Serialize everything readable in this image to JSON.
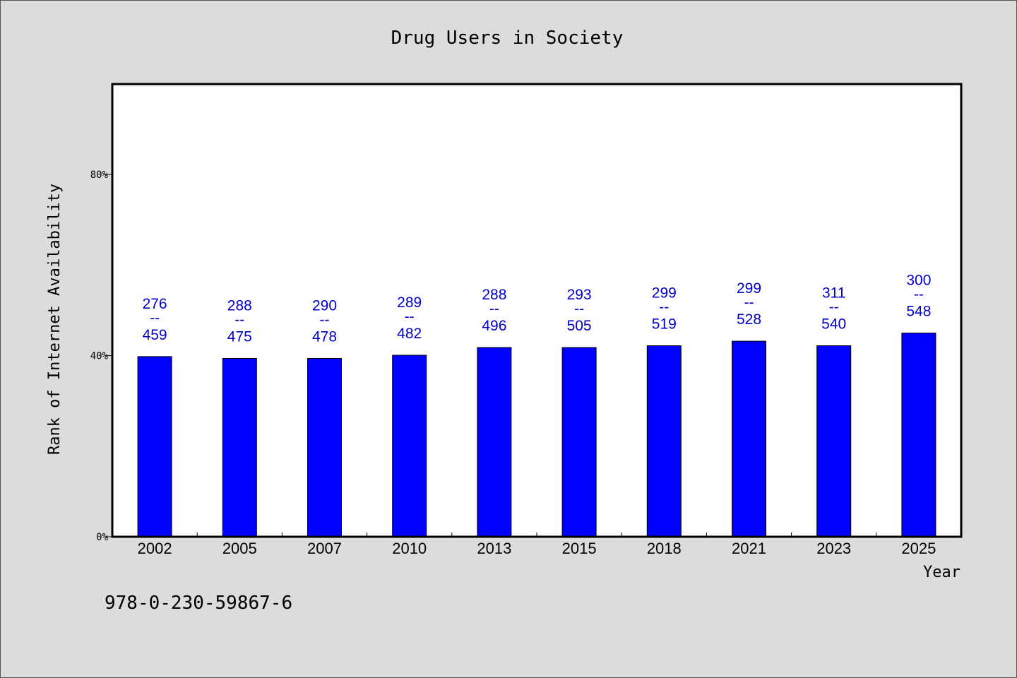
{
  "chart_data": {
    "type": "bar",
    "title": "Drug Users in Society",
    "ylabel": "Rank of Internet Availability",
    "xlabel": "Year",
    "ylim": [
      0,
      100
    ],
    "yticks": [
      {
        "value": 0,
        "label": "0%"
      },
      {
        "value": 40,
        "label": "40%"
      },
      {
        "value": 80,
        "label": "80%"
      }
    ],
    "categories": [
      "2002",
      "2005",
      "2007",
      "2010",
      "2013",
      "2015",
      "2018",
      "2021",
      "2023",
      "2025"
    ],
    "values": [
      39.8,
      39.4,
      39.4,
      40.1,
      41.8,
      41.8,
      42.2,
      43.2,
      42.2,
      45.0
    ],
    "label_top": [
      "276",
      "288",
      "290",
      "289",
      "288",
      "293",
      "299",
      "299",
      "311",
      "300"
    ],
    "label_sep": "--",
    "label_bottom": [
      "459",
      "475",
      "478",
      "482",
      "496",
      "505",
      "519",
      "528",
      "540",
      "548"
    ],
    "bar_color": "#0000ff",
    "label_color": "#0000cc",
    "grid": false,
    "legend": "none"
  },
  "footer": {
    "isbn": "978-0-230-59867-6"
  }
}
